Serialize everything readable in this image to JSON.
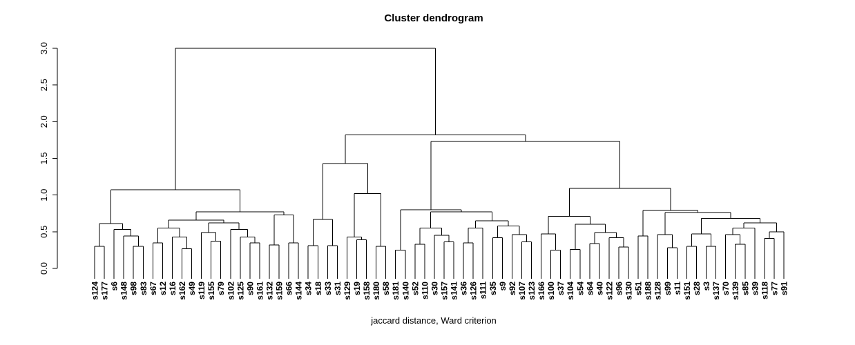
{
  "chart_data": {
    "type": "dendrogram",
    "title": "Cluster dendrogram",
    "xlabel": "jaccard distance, Ward criterion",
    "ylabel": "",
    "ylim": [
      0,
      3
    ],
    "y_ticks": [
      0,
      0.5,
      1,
      1.5,
      2,
      2.5,
      3
    ],
    "y_tick_labels": [
      "0.0",
      "0.5",
      "1.0",
      "1.5",
      "2.0",
      "2.5",
      "3.0"
    ],
    "grid": false,
    "legend": false,
    "line_color": "#000000",
    "group_colors": {
      "c": "#00FFFF",
      "r": "#FF0000"
    },
    "leaves": [
      [
        "s124",
        "c"
      ],
      [
        "s177",
        "c"
      ],
      [
        "s6",
        "r"
      ],
      [
        "s148",
        "c"
      ],
      [
        "s98",
        "r"
      ],
      [
        "s83",
        "r"
      ],
      [
        "s67",
        "c"
      ],
      [
        "s12",
        "c"
      ],
      [
        "s16",
        "r"
      ],
      [
        "s162",
        "r"
      ],
      [
        "s49",
        "c"
      ],
      [
        "s119",
        "c"
      ],
      [
        "s155",
        "r"
      ],
      [
        "s79",
        "r"
      ],
      [
        "s102",
        "r"
      ],
      [
        "s125",
        "c"
      ],
      [
        "s90",
        "r"
      ],
      [
        "s161",
        "r"
      ],
      [
        "s132",
        "r"
      ],
      [
        "s159",
        "c"
      ],
      [
        "s66",
        "r"
      ],
      [
        "s144",
        "r"
      ],
      [
        "s34",
        "r"
      ],
      [
        "s18",
        "r"
      ],
      [
        "s33",
        "r"
      ],
      [
        "s31",
        "r"
      ],
      [
        "s129",
        "r"
      ],
      [
        "s19",
        "r"
      ],
      [
        "s158",
        "c"
      ],
      [
        "s180",
        "r"
      ],
      [
        "s58",
        "r"
      ],
      [
        "s181",
        "r"
      ],
      [
        "s140",
        "c"
      ],
      [
        "s52",
        "c"
      ],
      [
        "s110",
        "c"
      ],
      [
        "s30",
        "c"
      ],
      [
        "s157",
        "c"
      ],
      [
        "s141",
        "c"
      ],
      [
        "s36",
        "c"
      ],
      [
        "s126",
        "r"
      ],
      [
        "s111",
        "c"
      ],
      [
        "s35",
        "r"
      ],
      [
        "s9",
        "c"
      ],
      [
        "s92",
        "r"
      ],
      [
        "s107",
        "c"
      ],
      [
        "s123",
        "c"
      ],
      [
        "s166",
        "r"
      ],
      [
        "s100",
        "r"
      ],
      [
        "s37",
        "r"
      ],
      [
        "s104",
        "c"
      ],
      [
        "s54",
        "c"
      ],
      [
        "s64",
        "c"
      ],
      [
        "s40",
        "c"
      ],
      [
        "s122",
        "c"
      ],
      [
        "s96",
        "r"
      ],
      [
        "s130",
        "c"
      ],
      [
        "s51",
        "r"
      ],
      [
        "s188",
        "c"
      ],
      [
        "s128",
        "c"
      ],
      [
        "s99",
        "r"
      ],
      [
        "s11",
        "r"
      ],
      [
        "s151",
        "r"
      ],
      [
        "s28",
        "r"
      ],
      [
        "s3",
        "c"
      ],
      [
        "s137",
        "c"
      ],
      [
        "s70",
        "c"
      ],
      [
        "s139",
        "c"
      ],
      [
        "s85",
        "c"
      ],
      [
        "s39",
        "r"
      ],
      [
        "s118",
        "c"
      ],
      [
        "s77",
        "r"
      ],
      [
        "s91",
        "c"
      ]
    ],
    "tree": [
      3.0,
      [
        1.07,
        [
          0.61,
          [
            0.3,
            "s124",
            "s177"
          ],
          [
            0.53,
            "s6",
            [
              0.44,
              "s148",
              [
                0.3,
                "s98",
                "s83"
              ]
            ]
          ]
        ],
        [
          0.77,
          [
            0.66,
            [
              0.55,
              [
                0.35,
                "s67",
                "s12"
              ],
              [
                0.43,
                "s16",
                [
                  0.27,
                  "s162",
                  "s49"
                ]
              ]
            ],
            [
              0.62,
              [
                0.49,
                "s119",
                [
                  0.37,
                  "s155",
                  "s79"
                ]
              ],
              [
                0.53,
                "s102",
                [
                  0.43,
                  "s125",
                  [
                    0.35,
                    "s90",
                    "s161"
                  ]
                ]
              ]
            ]
          ],
          [
            0.73,
            [
              0.32,
              "s132",
              "s159"
            ],
            [
              0.35,
              "s66",
              "s144"
            ]
          ]
        ]
      ],
      [
        1.82,
        [
          1.43,
          [
            0.67,
            [
              0.31,
              "s34",
              "s18"
            ],
            [
              0.31,
              "s33",
              "s31"
            ]
          ],
          [
            1.02,
            [
              0.43,
              "s129",
              [
                0.39,
                "s19",
                "s158"
              ]
            ],
            [
              0.3,
              "s180",
              "s58"
            ]
          ]
        ],
        [
          1.73,
          [
            0.8,
            [
              0.25,
              "s181",
              "s140"
            ],
            [
              0.77,
              [
                0.55,
                [
                  0.33,
                  "s52",
                  "s110"
                ],
                [
                  0.45,
                  "s30",
                  [
                    0.36,
                    "s157",
                    "s141"
                  ]
                ]
              ],
              [
                0.65,
                [
                  0.55,
                  [
                    0.35,
                    "s36",
                    "s126"
                  ],
                  "s111"
                ],
                [
                  0.58,
                  [
                    0.42,
                    "s35",
                    "s9"
                  ],
                  [
                    0.46,
                    "s92",
                    [
                      0.36,
                      "s107",
                      "s123"
                    ]
                  ]
                ]
              ]
            ]
          ],
          [
            1.09,
            [
              0.71,
              [
                0.47,
                "s166",
                [
                  0.25,
                  "s100",
                  "s37"
                ]
              ],
              [
                0.6,
                [
                  0.26,
                  "s104",
                  "s54"
                ],
                [
                  0.49,
                  [
                    0.34,
                    "s64",
                    "s40"
                  ],
                  [
                    0.42,
                    "s122",
                    [
                      0.29,
                      "s96",
                      "s130"
                    ]
                  ]
                ]
              ]
            ],
            [
              0.79,
              [
                0.44,
                "s51",
                "s188"
              ],
              [
                0.76,
                [
                  0.46,
                  "s128",
                  [
                    0.28,
                    "s99",
                    "s11"
                  ]
                ],
                [
                  0.68,
                  [
                    0.47,
                    [
                      0.3,
                      "s151",
                      "s28"
                    ],
                    [
                      0.3,
                      "s3",
                      "s137"
                    ]
                  ],
                  [
                    0.62,
                    [
                      0.55,
                      [
                        0.46,
                        "s70",
                        [
                          0.33,
                          "s139",
                          "s85"
                        ]
                      ],
                      "s39"
                    ],
                    [
                      0.5,
                      [
                        0.41,
                        "s118",
                        "s77"
                      ],
                      "s91"
                    ]
                  ]
                ]
              ]
            ]
          ]
        ]
      ]
    ]
  }
}
